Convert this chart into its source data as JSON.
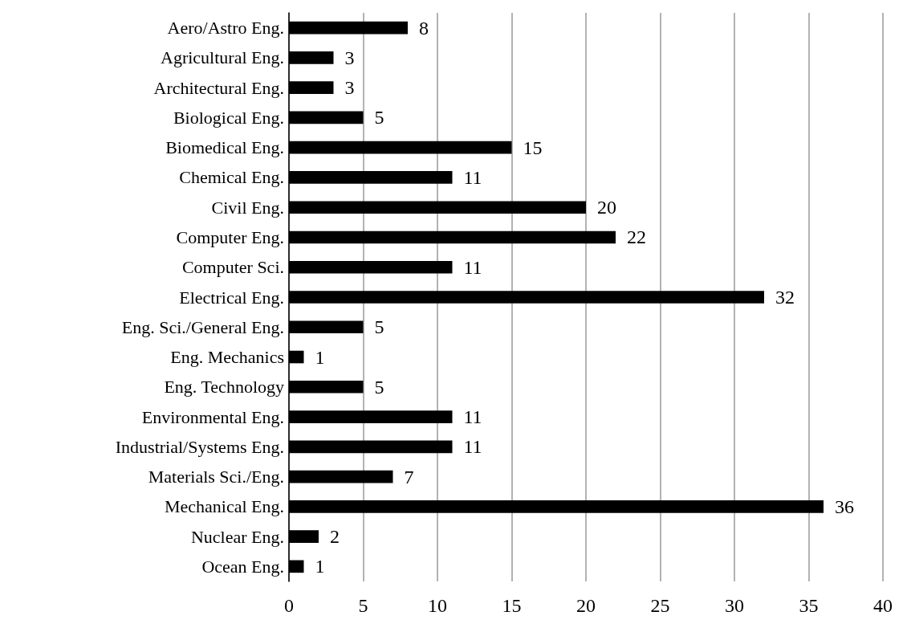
{
  "chart_data": {
    "type": "bar",
    "orientation": "horizontal",
    "categories": [
      "Aero/Astro Eng.",
      "Agricultural Eng.",
      "Architectural Eng.",
      "Biological Eng.",
      "Biomedical Eng.",
      "Chemical Eng.",
      "Civil Eng.",
      "Computer Eng.",
      "Computer Sci.",
      "Electrical Eng.",
      "Eng. Sci./General Eng.",
      "Eng. Mechanics",
      "Eng. Technology",
      "Environmental Eng.",
      "Industrial/Systems Eng.",
      "Materials Sci./Eng.",
      "Mechanical Eng.",
      "Nuclear Eng.",
      "Ocean Eng."
    ],
    "values": [
      8,
      3,
      3,
      5,
      15,
      11,
      20,
      22,
      11,
      32,
      5,
      1,
      5,
      11,
      11,
      7,
      36,
      2,
      1
    ],
    "color": "#000000",
    "xlim": [
      0,
      40
    ],
    "xticks": [
      0,
      5,
      10,
      15,
      20,
      25,
      30,
      35,
      40
    ],
    "grid": "x",
    "data_labels": true
  }
}
